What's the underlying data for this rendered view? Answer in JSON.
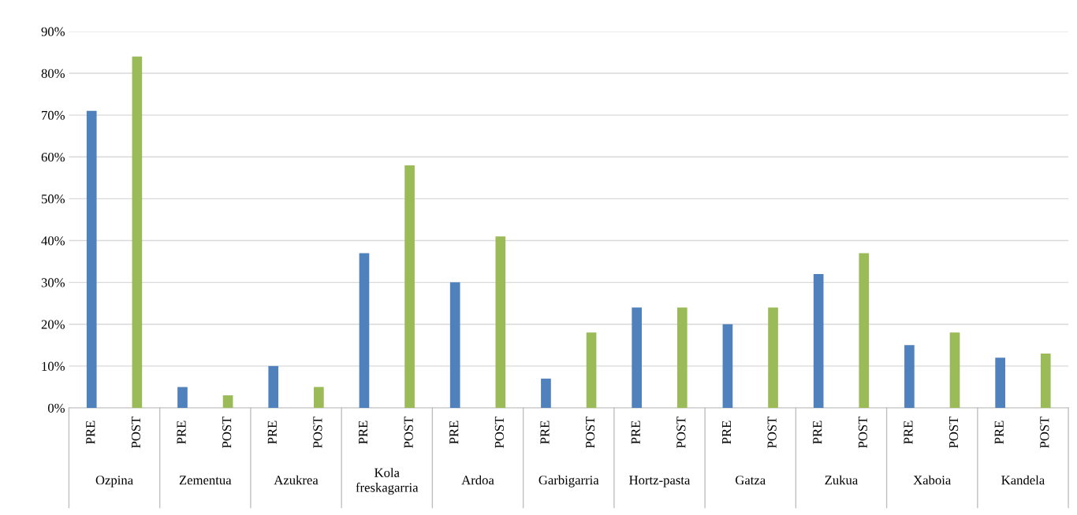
{
  "chart_data": {
    "type": "bar",
    "categories": [
      "Ozpina",
      "Zementua",
      "Azukrea",
      "Kola\nfreskagarria",
      "Ardoa",
      "Garbigarria",
      "Hortz-pasta",
      "Gatza",
      "Zukua",
      "Xaboia",
      "Kandela"
    ],
    "series": [
      {
        "name": "PRE",
        "color": "#4f81bd",
        "values": [
          71,
          5,
          10,
          37,
          30,
          7,
          24,
          20,
          32,
          15,
          12
        ]
      },
      {
        "name": "POST",
        "color": "#9bbb59",
        "values": [
          84,
          3,
          5,
          58,
          41,
          18,
          24,
          24,
          37,
          18,
          13
        ]
      }
    ],
    "ylim": [
      0,
      90
    ],
    "yticks": [
      {
        "value": 0,
        "label": "0%"
      },
      {
        "value": 10,
        "label": "10%"
      },
      {
        "value": 20,
        "label": "20%"
      },
      {
        "value": 30,
        "label": "30%"
      },
      {
        "value": 40,
        "label": "40%"
      },
      {
        "value": 50,
        "label": "50%"
      },
      {
        "value": 60,
        "label": "60%"
      },
      {
        "value": 70,
        "label": "70%"
      },
      {
        "value": 80,
        "label": "80%"
      },
      {
        "value": 90,
        "label": "90%"
      }
    ],
    "grid": "y"
  }
}
